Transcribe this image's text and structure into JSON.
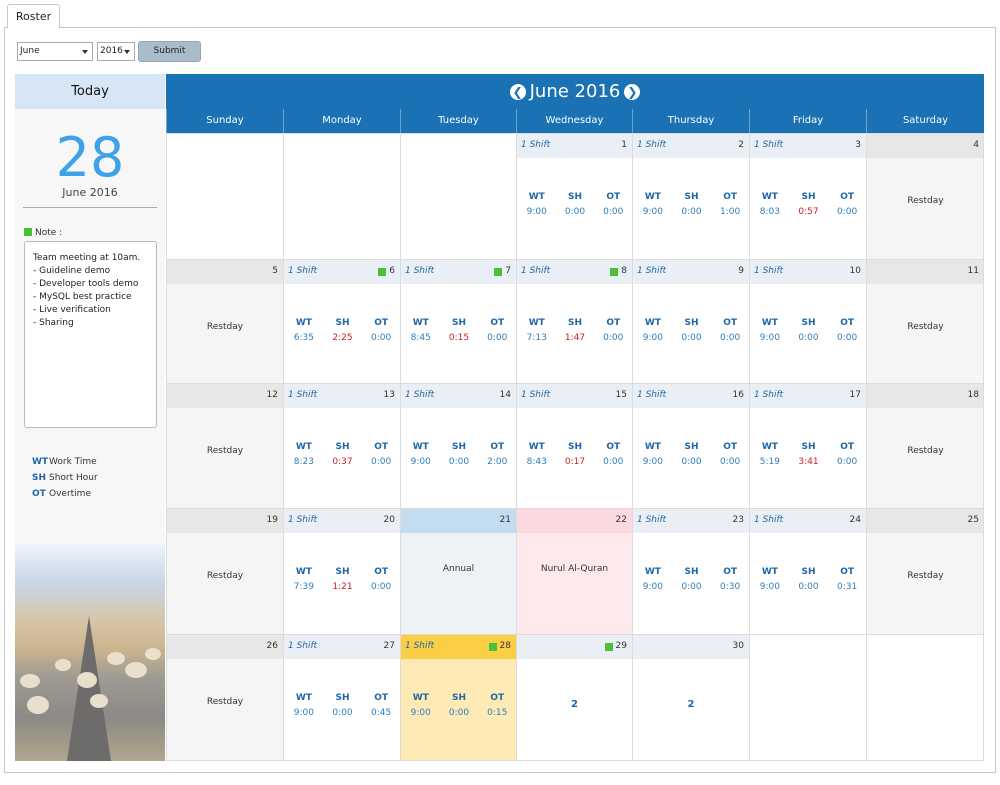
{
  "tab": {
    "label": "Roster"
  },
  "filter": {
    "month": "June",
    "year": "2016",
    "submit_label": "Submit"
  },
  "today": {
    "header": "Today",
    "day": "28",
    "month_year": "June 2016",
    "note_label": "Note :",
    "note_lines": [
      "Team meeting at 10am.",
      "- Guideline demo",
      "- Developer tools demo",
      "- MySQL best practice",
      "- Live verification",
      "- Sharing"
    ]
  },
  "legend": [
    {
      "code": "WT",
      "label": "Work Time"
    },
    {
      "code": "SH",
      "label": "Short Hour"
    },
    {
      "code": "OT",
      "label": "Overtime"
    }
  ],
  "calendar": {
    "title": "June 2016",
    "prev_icon": "arrow-left-circle-icon",
    "next_icon": "arrow-right-circle-icon",
    "weekdays": [
      "Sunday",
      "Monday",
      "Tuesday",
      "Wednesday",
      "Thursday",
      "Friday",
      "Saturday"
    ],
    "stat_labels": {
      "wt": "WT",
      "sh": "SH",
      "ot": "OT"
    },
    "colors": {
      "header": "#1a72b5",
      "accent": "#3ea2e8",
      "short": "#d02020",
      "note": "#4cbf3a",
      "today": "#fbcf45"
    },
    "weeks": [
      [
        {
          "type": "empty"
        },
        {
          "type": "empty"
        },
        {
          "type": "empty"
        },
        {
          "type": "shift",
          "day": "1",
          "shift": "1 Shift",
          "wt": "9:00",
          "sh": "0:00",
          "ot": "0:00"
        },
        {
          "type": "shift",
          "day": "2",
          "shift": "1 Shift",
          "wt": "9:00",
          "sh": "0:00",
          "ot": "1:00"
        },
        {
          "type": "shift",
          "day": "3",
          "shift": "1 Shift",
          "wt": "8:03",
          "sh": "0:57",
          "ot": "0:00",
          "sh_red": true
        },
        {
          "type": "rest",
          "day": "4",
          "label": "Restday"
        }
      ],
      [
        {
          "type": "rest",
          "day": "5",
          "label": "Restday"
        },
        {
          "type": "shift",
          "day": "6",
          "shift": "1 Shift",
          "wt": "6:35",
          "sh": "2:25",
          "ot": "0:00",
          "sh_red": true,
          "note": true
        },
        {
          "type": "shift",
          "day": "7",
          "shift": "1 Shift",
          "wt": "8:45",
          "sh": "0:15",
          "ot": "0:00",
          "sh_red": true,
          "note": true
        },
        {
          "type": "shift",
          "day": "8",
          "shift": "1 Shift",
          "wt": "7:13",
          "sh": "1:47",
          "ot": "0:00",
          "sh_red": true,
          "note": true
        },
        {
          "type": "shift",
          "day": "9",
          "shift": "1 Shift",
          "wt": "9:00",
          "sh": "0:00",
          "ot": "0:00"
        },
        {
          "type": "shift",
          "day": "10",
          "shift": "1 Shift",
          "wt": "9:00",
          "sh": "0:00",
          "ot": "0:00"
        },
        {
          "type": "rest",
          "day": "11",
          "label": "Restday"
        }
      ],
      [
        {
          "type": "rest",
          "day": "12",
          "label": "Restday"
        },
        {
          "type": "shift",
          "day": "13",
          "shift": "1 Shift",
          "wt": "8:23",
          "sh": "0:37",
          "ot": "0:00",
          "sh_red": true
        },
        {
          "type": "shift",
          "day": "14",
          "shift": "1 Shift",
          "wt": "9:00",
          "sh": "0:00",
          "ot": "2:00"
        },
        {
          "type": "shift",
          "day": "15",
          "shift": "1 Shift",
          "wt": "8:43",
          "sh": "0:17",
          "ot": "0:00",
          "sh_red": true
        },
        {
          "type": "shift",
          "day": "16",
          "shift": "1 Shift",
          "wt": "9:00",
          "sh": "0:00",
          "ot": "0:00"
        },
        {
          "type": "shift",
          "day": "17",
          "shift": "1 Shift",
          "wt": "5:19",
          "sh": "3:41",
          "ot": "0:00",
          "sh_red": true
        },
        {
          "type": "rest",
          "day": "18",
          "label": "Restday"
        }
      ],
      [
        {
          "type": "rest",
          "day": "19",
          "label": "Restday"
        },
        {
          "type": "shift",
          "day": "20",
          "shift": "1 Shift",
          "wt": "7:39",
          "sh": "1:21",
          "ot": "0:00",
          "sh_red": true
        },
        {
          "type": "hol1",
          "day": "21",
          "label": "Annual"
        },
        {
          "type": "hol2",
          "day": "22",
          "label": "Nurul Al-Quran"
        },
        {
          "type": "shift",
          "day": "23",
          "shift": "1 Shift",
          "wt": "9:00",
          "sh": "0:00",
          "ot": "0:30"
        },
        {
          "type": "shift",
          "day": "24",
          "shift": "1 Shift",
          "wt": "9:00",
          "sh": "0:00",
          "ot": "0:31"
        },
        {
          "type": "rest",
          "day": "25",
          "label": "Restday"
        }
      ],
      [
        {
          "type": "rest",
          "day": "26",
          "label": "Restday"
        },
        {
          "type": "shift",
          "day": "27",
          "shift": "1 Shift",
          "wt": "9:00",
          "sh": "0:00",
          "ot": "0:45"
        },
        {
          "type": "today",
          "day": "28",
          "shift": "1 Shift",
          "wt": "9:00",
          "sh": "0:00",
          "ot": "0:15",
          "note": true
        },
        {
          "type": "ext",
          "day": "29",
          "count": "2",
          "note": true
        },
        {
          "type": "ext",
          "day": "30",
          "count": "2"
        },
        {
          "type": "empty"
        },
        {
          "type": "empty"
        }
      ]
    ]
  }
}
